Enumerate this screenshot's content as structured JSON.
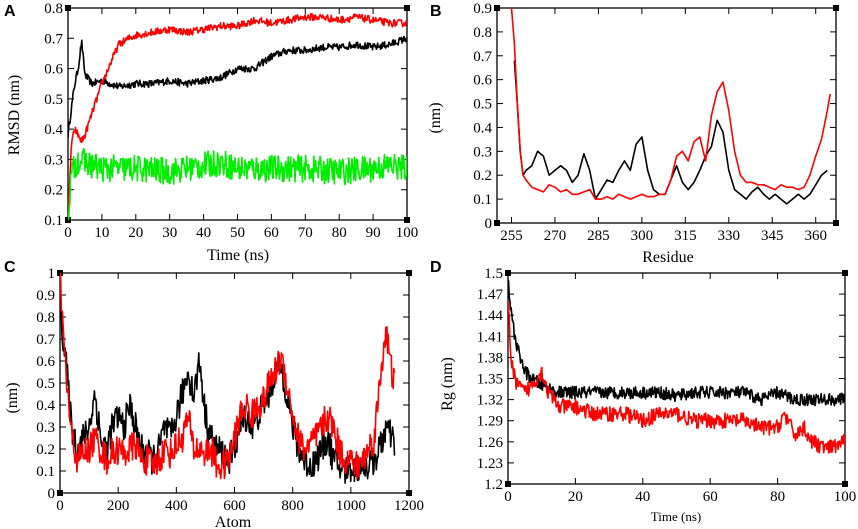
{
  "chart_data": [
    {
      "id": "A",
      "type": "line",
      "panel_label": "A",
      "xlabel": "Time (ns)",
      "ylabel": "RMSD (nm)",
      "xlim": [
        0,
        100
      ],
      "ylim": [
        0.1,
        0.8
      ],
      "xticks": [
        "0",
        "10",
        "20",
        "30",
        "40",
        "50",
        "60",
        "70",
        "80",
        "90",
        "100"
      ],
      "yticks": [
        "0.1",
        "0.2",
        "0.3",
        "0.4",
        "0.5",
        "0.6",
        "0.7",
        "0.8"
      ],
      "series": [
        {
          "name": "black",
          "color": "#000000",
          "noise": 0.012,
          "x": [
            0,
            1,
            2,
            3,
            4,
            5,
            7,
            10,
            15,
            20,
            25,
            30,
            35,
            40,
            45,
            50,
            55,
            60,
            65,
            70,
            75,
            80,
            85,
            90,
            95,
            100
          ],
          "y": [
            0.38,
            0.47,
            0.55,
            0.6,
            0.69,
            0.58,
            0.55,
            0.56,
            0.54,
            0.55,
            0.55,
            0.56,
            0.55,
            0.56,
            0.57,
            0.6,
            0.6,
            0.64,
            0.66,
            0.66,
            0.67,
            0.67,
            0.68,
            0.67,
            0.68,
            0.7
          ]
        },
        {
          "name": "red",
          "color": "#ff0000",
          "noise": 0.012,
          "x": [
            0,
            1,
            2,
            3,
            4,
            5,
            7,
            10,
            13,
            15,
            18,
            20,
            25,
            30,
            35,
            40,
            45,
            50,
            55,
            60,
            65,
            70,
            75,
            80,
            85,
            90,
            95,
            100
          ],
          "y": [
            0.1,
            0.35,
            0.4,
            0.38,
            0.36,
            0.38,
            0.45,
            0.55,
            0.63,
            0.68,
            0.7,
            0.71,
            0.72,
            0.73,
            0.72,
            0.73,
            0.74,
            0.74,
            0.76,
            0.75,
            0.76,
            0.77,
            0.77,
            0.76,
            0.77,
            0.76,
            0.75,
            0.75
          ]
        },
        {
          "name": "green",
          "color": "#00ee00",
          "noise": 0.045,
          "x": [
            0,
            1,
            3,
            5,
            10,
            20,
            30,
            40,
            45,
            50,
            60,
            70,
            80,
            90,
            95,
            100
          ],
          "y": [
            0.12,
            0.25,
            0.3,
            0.29,
            0.27,
            0.27,
            0.26,
            0.28,
            0.29,
            0.27,
            0.27,
            0.27,
            0.26,
            0.27,
            0.28,
            0.27
          ]
        }
      ]
    },
    {
      "id": "B",
      "type": "line",
      "panel_label": "B",
      "xlabel": "Residue",
      "ylabel": "(nm)",
      "xlim": [
        250,
        367
      ],
      "ylim": [
        0,
        0.9
      ],
      "xticks": [
        "255",
        "270",
        "285",
        "300",
        "315",
        "330",
        "345",
        "360"
      ],
      "yticks": [
        "0",
        "0.1",
        "0.2",
        "0.3",
        "0.4",
        "0.5",
        "0.6",
        "0.7",
        "0.8",
        "0.9"
      ],
      "series": [
        {
          "name": "black",
          "color": "#000000",
          "noise": 0,
          "x": [
            256,
            257,
            258,
            259,
            260,
            262,
            264,
            266,
            268,
            270,
            272,
            274,
            276,
            278,
            280,
            282,
            284,
            286,
            288,
            290,
            292,
            294,
            296,
            298,
            300,
            302,
            304,
            306,
            308,
            310,
            312,
            314,
            316,
            318,
            320,
            322,
            324,
            326,
            328,
            330,
            332,
            334,
            336,
            338,
            340,
            342,
            344,
            346,
            348,
            350,
            352,
            354,
            356,
            358,
            360,
            362,
            364
          ],
          "y": [
            0.68,
            0.5,
            0.3,
            0.2,
            0.22,
            0.24,
            0.3,
            0.28,
            0.2,
            0.22,
            0.24,
            0.22,
            0.17,
            0.2,
            0.29,
            0.22,
            0.1,
            0.14,
            0.18,
            0.17,
            0.22,
            0.26,
            0.22,
            0.33,
            0.36,
            0.22,
            0.14,
            0.12,
            0.12,
            0.18,
            0.24,
            0.17,
            0.14,
            0.17,
            0.22,
            0.28,
            0.32,
            0.43,
            0.38,
            0.22,
            0.14,
            0.12,
            0.1,
            0.13,
            0.15,
            0.12,
            0.1,
            0.12,
            0.1,
            0.08,
            0.1,
            0.12,
            0.1,
            0.12,
            0.16,
            0.2,
            0.22
          ]
        },
        {
          "name": "red",
          "color": "#ff0000",
          "noise": 0,
          "x": [
            255,
            256,
            257,
            258,
            259,
            260,
            262,
            264,
            266,
            268,
            270,
            272,
            274,
            276,
            278,
            280,
            282,
            284,
            286,
            288,
            290,
            292,
            294,
            296,
            298,
            300,
            302,
            304,
            306,
            308,
            310,
            312,
            314,
            316,
            318,
            320,
            322,
            324,
            326,
            328,
            330,
            332,
            334,
            336,
            338,
            340,
            342,
            344,
            346,
            348,
            350,
            352,
            354,
            356,
            358,
            360,
            362,
            364,
            365
          ],
          "y": [
            0.9,
            0.75,
            0.5,
            0.3,
            0.2,
            0.18,
            0.15,
            0.14,
            0.13,
            0.16,
            0.15,
            0.13,
            0.14,
            0.12,
            0.12,
            0.13,
            0.14,
            0.1,
            0.1,
            0.11,
            0.1,
            0.12,
            0.11,
            0.1,
            0.11,
            0.12,
            0.11,
            0.11,
            0.12,
            0.12,
            0.18,
            0.28,
            0.3,
            0.26,
            0.34,
            0.36,
            0.26,
            0.45,
            0.55,
            0.59,
            0.47,
            0.3,
            0.2,
            0.17,
            0.17,
            0.16,
            0.16,
            0.15,
            0.14,
            0.16,
            0.15,
            0.15,
            0.14,
            0.15,
            0.2,
            0.28,
            0.35,
            0.47,
            0.54
          ]
        }
      ]
    },
    {
      "id": "C",
      "type": "line",
      "panel_label": "C",
      "xlabel": "Atom",
      "ylabel": "(nm)",
      "xlim": [
        0,
        1200
      ],
      "ylim": [
        0,
        1
      ],
      "xticks": [
        "0",
        "200",
        "400",
        "600",
        "800",
        "1000",
        "1200"
      ],
      "yticks": [
        "0",
        "0.1",
        "0.2",
        "0.3",
        "0.4",
        "0.5",
        "0.6",
        "0.7",
        "0.8",
        "0.9",
        "1"
      ],
      "series": [
        {
          "name": "black",
          "color": "#000000",
          "noise": 0.07,
          "x": [
            0,
            10,
            20,
            40,
            60,
            80,
            100,
            120,
            140,
            160,
            180,
            200,
            220,
            240,
            260,
            280,
            300,
            320,
            340,
            360,
            380,
            400,
            420,
            440,
            460,
            480,
            500,
            520,
            540,
            560,
            580,
            600,
            620,
            640,
            660,
            680,
            700,
            720,
            740,
            760,
            780,
            800,
            820,
            840,
            860,
            880,
            900,
            920,
            940,
            960,
            980,
            1000,
            1020,
            1040,
            1060,
            1080,
            1100,
            1120,
            1140,
            1150
          ],
          "y": [
            0.95,
            0.7,
            0.6,
            0.3,
            0.2,
            0.25,
            0.3,
            0.45,
            0.25,
            0.2,
            0.3,
            0.35,
            0.3,
            0.4,
            0.3,
            0.2,
            0.18,
            0.15,
            0.2,
            0.3,
            0.25,
            0.35,
            0.45,
            0.55,
            0.45,
            0.6,
            0.35,
            0.25,
            0.2,
            0.18,
            0.15,
            0.2,
            0.3,
            0.35,
            0.3,
            0.35,
            0.4,
            0.45,
            0.55,
            0.58,
            0.45,
            0.3,
            0.2,
            0.15,
            0.12,
            0.15,
            0.2,
            0.25,
            0.15,
            0.12,
            0.1,
            0.12,
            0.1,
            0.15,
            0.12,
            0.15,
            0.2,
            0.3,
            0.25,
            0.22
          ]
        },
        {
          "name": "red",
          "color": "#ff0000",
          "noise": 0.07,
          "x": [
            0,
            10,
            20,
            40,
            60,
            80,
            100,
            120,
            140,
            160,
            180,
            200,
            220,
            240,
            260,
            280,
            300,
            320,
            340,
            360,
            380,
            400,
            420,
            440,
            460,
            480,
            500,
            520,
            540,
            560,
            580,
            600,
            620,
            640,
            660,
            680,
            700,
            720,
            740,
            760,
            780,
            800,
            820,
            840,
            860,
            880,
            900,
            920,
            940,
            960,
            980,
            1000,
            1020,
            1040,
            1060,
            1080,
            1100,
            1120,
            1140,
            1150
          ],
          "y": [
            1.0,
            0.75,
            0.55,
            0.25,
            0.15,
            0.18,
            0.2,
            0.25,
            0.2,
            0.15,
            0.18,
            0.2,
            0.18,
            0.2,
            0.22,
            0.15,
            0.15,
            0.12,
            0.15,
            0.2,
            0.18,
            0.22,
            0.25,
            0.35,
            0.2,
            0.2,
            0.18,
            0.2,
            0.12,
            0.12,
            0.15,
            0.25,
            0.35,
            0.4,
            0.35,
            0.4,
            0.42,
            0.5,
            0.55,
            0.62,
            0.5,
            0.35,
            0.25,
            0.2,
            0.22,
            0.25,
            0.3,
            0.35,
            0.3,
            0.2,
            0.15,
            0.15,
            0.12,
            0.15,
            0.2,
            0.25,
            0.5,
            0.75,
            0.55,
            0.5
          ]
        }
      ]
    },
    {
      "id": "D",
      "type": "line",
      "panel_label": "D",
      "xlabel": "Time (ns)",
      "ylabel": "Rg (nm)",
      "xlim": [
        0,
        100
      ],
      "ylim": [
        1.2,
        1.5
      ],
      "xticks": [
        "0",
        "20",
        "40",
        "60",
        "80",
        "100"
      ],
      "yticks": [
        "1.2",
        "1.23",
        "1.26",
        "1.29",
        "1.32",
        "1.35",
        "1.38",
        "1.41",
        "1.44",
        "1.47",
        "1.5"
      ],
      "series": [
        {
          "name": "black",
          "color": "#000000",
          "noise": 0.009,
          "x": [
            0,
            1,
            2,
            3,
            5,
            7,
            10,
            15,
            20,
            25,
            30,
            35,
            40,
            45,
            50,
            55,
            60,
            65,
            70,
            75,
            80,
            85,
            90,
            95,
            100
          ],
          "y": [
            1.49,
            1.44,
            1.41,
            1.39,
            1.36,
            1.35,
            1.34,
            1.33,
            1.33,
            1.33,
            1.33,
            1.33,
            1.33,
            1.33,
            1.325,
            1.33,
            1.33,
            1.33,
            1.33,
            1.32,
            1.33,
            1.32,
            1.32,
            1.32,
            1.32
          ]
        },
        {
          "name": "red",
          "color": "#ff0000",
          "noise": 0.011,
          "x": [
            0,
            1,
            2,
            3,
            5,
            7,
            10,
            12,
            15,
            20,
            25,
            30,
            35,
            40,
            45,
            50,
            55,
            60,
            65,
            70,
            75,
            80,
            82,
            85,
            88,
            90,
            95,
            100
          ],
          "y": [
            1.47,
            1.37,
            1.35,
            1.34,
            1.33,
            1.34,
            1.36,
            1.33,
            1.31,
            1.31,
            1.3,
            1.3,
            1.3,
            1.29,
            1.3,
            1.3,
            1.29,
            1.29,
            1.29,
            1.29,
            1.28,
            1.28,
            1.3,
            1.27,
            1.28,
            1.26,
            1.25,
            1.26
          ]
        }
      ]
    }
  ]
}
